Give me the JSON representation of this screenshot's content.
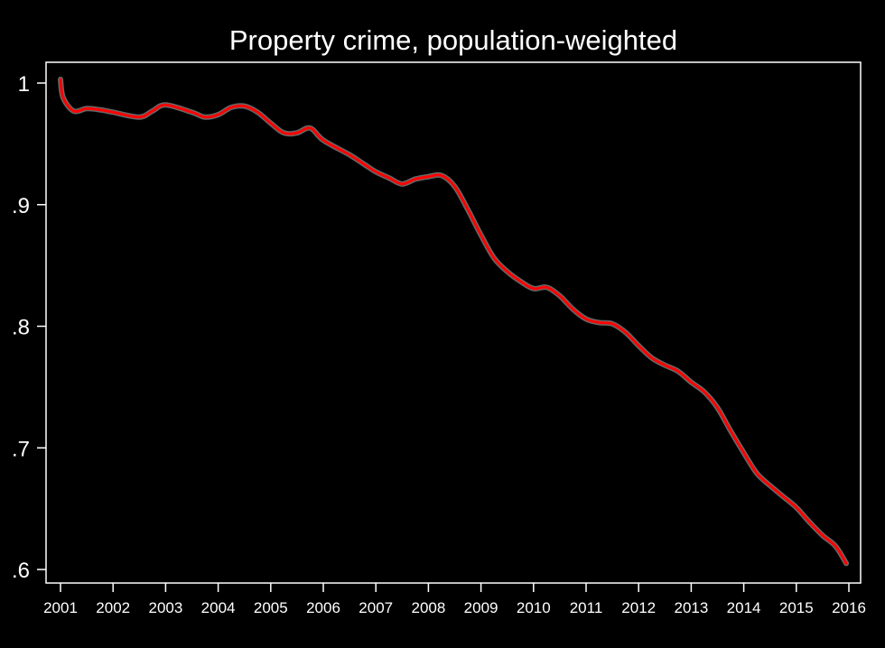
{
  "chart_data": {
    "type": "line",
    "title": "Property crime, population-weighted",
    "xlabel": "",
    "ylabel": "",
    "xlim": [
      2001,
      2016
    ],
    "ylim": [
      0.6,
      1.0
    ],
    "x_ticks": [
      "2001",
      "2002",
      "2003",
      "2004",
      "2005",
      "2006",
      "2007",
      "2008",
      "2009",
      "2010",
      "2011",
      "2012",
      "2013",
      "2014",
      "2015",
      "2016"
    ],
    "y_ticks": [
      {
        "value": 1.0,
        "label": "1"
      },
      {
        "value": 0.9,
        "label": ".9"
      },
      {
        "value": 0.8,
        "label": ".8"
      },
      {
        "value": 0.7,
        "label": ".7"
      },
      {
        "value": 0.6,
        "label": ".6"
      }
    ],
    "grid": false,
    "colors": {
      "background": "#000000",
      "line": "#ff0000",
      "halo": "#bbbbbb",
      "axis": "#ffffff"
    },
    "series": [
      {
        "x": [
          2001.0,
          2001.05,
          2001.25,
          2001.5,
          2001.75,
          2002.0,
          2002.5,
          2002.75,
          2003.0,
          2003.5,
          2003.75,
          2004.0,
          2004.25,
          2004.5,
          2004.75,
          2005.0,
          2005.25,
          2005.5,
          2005.75,
          2006.0,
          2006.5,
          2006.75,
          2007.0,
          2007.25,
          2007.5,
          2007.75,
          2008.0,
          2008.25,
          2008.5,
          2008.75,
          2009.0,
          2009.25,
          2009.5,
          2009.75,
          2010.0,
          2010.25,
          2010.5,
          2010.75,
          2011.0,
          2011.25,
          2011.5,
          2011.75,
          2012.0,
          2012.25,
          2012.5,
          2012.75,
          2013.0,
          2013.25,
          2013.5,
          2013.75,
          2014.0,
          2014.25,
          2014.5,
          2014.75,
          2015.0,
          2015.25,
          2015.5,
          2015.75,
          2015.95
        ],
        "y": [
          1.003,
          0.988,
          0.977,
          0.979,
          0.978,
          0.976,
          0.972,
          0.977,
          0.982,
          0.976,
          0.972,
          0.974,
          0.98,
          0.981,
          0.976,
          0.967,
          0.959,
          0.959,
          0.963,
          0.953,
          0.941,
          0.934,
          0.927,
          0.922,
          0.917,
          0.921,
          0.923,
          0.924,
          0.915,
          0.896,
          0.875,
          0.856,
          0.845,
          0.837,
          0.831,
          0.832,
          0.825,
          0.814,
          0.806,
          0.803,
          0.802,
          0.795,
          0.784,
          0.774,
          0.768,
          0.763,
          0.754,
          0.746,
          0.733,
          0.714,
          0.696,
          0.679,
          0.669,
          0.66,
          0.651,
          0.639,
          0.628,
          0.619,
          0.605
        ]
      }
    ]
  }
}
